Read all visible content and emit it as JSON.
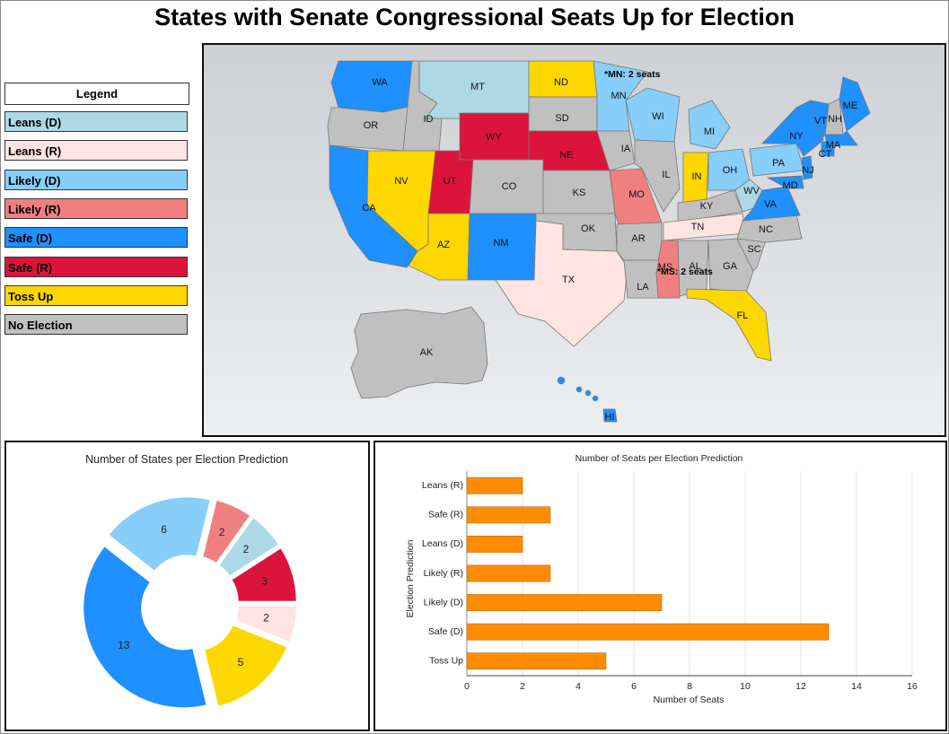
{
  "title": "States with Senate Congressional Seats Up for Election",
  "legend": {
    "title": "Legend",
    "items": [
      {
        "label": "Leans (D)",
        "color": "#add8e6"
      },
      {
        "label": "Leans (R)",
        "color": "#ffe4e1"
      },
      {
        "label": "Likely (D)",
        "color": "#87cefa"
      },
      {
        "label": "Likely (R)",
        "color": "#f08080"
      },
      {
        "label": "Safe (D)",
        "color": "#1e90ff"
      },
      {
        "label": "Safe (R)",
        "color": "#dc143c"
      },
      {
        "label": "Toss Up",
        "color": "#ffd700"
      },
      {
        "label": "No Election",
        "color": "#c0c0c0"
      }
    ]
  },
  "map": {
    "states": [
      {
        "abbr": "WA",
        "category": "Safe (D)"
      },
      {
        "abbr": "OR",
        "category": "No Election"
      },
      {
        "abbr": "CA",
        "category": "Safe (D)"
      },
      {
        "abbr": "ID",
        "category": "No Election"
      },
      {
        "abbr": "NV",
        "category": "Toss Up"
      },
      {
        "abbr": "MT",
        "category": "Leans (D)"
      },
      {
        "abbr": "WY",
        "category": "Safe (R)"
      },
      {
        "abbr": "UT",
        "category": "Safe (R)"
      },
      {
        "abbr": "AZ",
        "category": "Toss Up"
      },
      {
        "abbr": "CO",
        "category": "No Election"
      },
      {
        "abbr": "NM",
        "category": "Safe (D)"
      },
      {
        "abbr": "ND",
        "category": "Toss Up"
      },
      {
        "abbr": "SD",
        "category": "No Election"
      },
      {
        "abbr": "NE",
        "category": "Safe (R)"
      },
      {
        "abbr": "KS",
        "category": "No Election"
      },
      {
        "abbr": "OK",
        "category": "No Election"
      },
      {
        "abbr": "TX",
        "category": "Leans (R)"
      },
      {
        "abbr": "MN",
        "category": "Likely (D)"
      },
      {
        "abbr": "IA",
        "category": "No Election"
      },
      {
        "abbr": "MO",
        "category": "Likely (R)"
      },
      {
        "abbr": "AR",
        "category": "No Election"
      },
      {
        "abbr": "LA",
        "category": "No Election"
      },
      {
        "abbr": "WI",
        "category": "Likely (D)"
      },
      {
        "abbr": "IL",
        "category": "No Election"
      },
      {
        "abbr": "MS",
        "category": "Likely (R)"
      },
      {
        "abbr": "MI",
        "category": "Likely (D)"
      },
      {
        "abbr": "IN",
        "category": "Toss Up"
      },
      {
        "abbr": "KY",
        "category": "No Election"
      },
      {
        "abbr": "TN",
        "category": "Leans (R)"
      },
      {
        "abbr": "AL",
        "category": "No Election"
      },
      {
        "abbr": "OH",
        "category": "Likely (D)"
      },
      {
        "abbr": "WV",
        "category": "Leans (D)"
      },
      {
        "abbr": "GA",
        "category": "No Election"
      },
      {
        "abbr": "FL",
        "category": "Toss Up"
      },
      {
        "abbr": "SC",
        "category": "No Election"
      },
      {
        "abbr": "NC",
        "category": "No Election"
      },
      {
        "abbr": "VA",
        "category": "Safe (D)"
      },
      {
        "abbr": "PA",
        "category": "Likely (D)"
      },
      {
        "abbr": "NY",
        "category": "Safe (D)"
      },
      {
        "abbr": "VT",
        "category": "Safe (D)"
      },
      {
        "abbr": "NH",
        "category": "No Election"
      },
      {
        "abbr": "ME",
        "category": "Safe (D)"
      },
      {
        "abbr": "MA",
        "category": "Safe (D)"
      },
      {
        "abbr": "CT",
        "category": "Safe (D)"
      },
      {
        "abbr": "NJ",
        "category": "Safe (D)"
      },
      {
        "abbr": "MD",
        "category": "Safe (D)"
      },
      {
        "abbr": "AK",
        "category": "No Election"
      },
      {
        "abbr": "HI",
        "category": "Safe (D)"
      }
    ],
    "notes": [
      "*MN: 2 seats",
      "*MS: 2 seats"
    ]
  },
  "chart_data": [
    {
      "type": "pie",
      "title": "Number of States per Election Prediction",
      "slices": [
        {
          "label": "Leans (R)",
          "value": 2,
          "color": "#ffe4e1"
        },
        {
          "label": "Toss Up",
          "value": 5,
          "color": "#ffd700"
        },
        {
          "label": "Safe (D)",
          "value": 13,
          "color": "#1e90ff"
        },
        {
          "label": "Likely (D)",
          "value": 6,
          "color": "#87cefa"
        },
        {
          "label": "Likely (R)",
          "value": 2,
          "color": "#f08080"
        },
        {
          "label": "Leans (D)",
          "value": 2,
          "color": "#add8e6"
        },
        {
          "label": "Safe (R)",
          "value": 3,
          "color": "#dc143c"
        }
      ]
    },
    {
      "type": "bar",
      "orientation": "horizontal",
      "title": "Number of Seats per Election Prediction",
      "xlabel": "Number of Seats",
      "ylabel": "Election Prediction",
      "categories": [
        "Leans (R)",
        "Safe (R)",
        "Leans (D)",
        "Likely (R)",
        "Likely (D)",
        "Safe (D)",
        "Toss Up"
      ],
      "values": [
        2,
        3,
        2,
        3,
        7,
        13,
        5
      ],
      "xlim": [
        0,
        16
      ],
      "xticks": [
        0,
        2,
        4,
        6,
        8,
        10,
        12,
        14,
        16
      ],
      "color": "#ff8c00",
      "grid": true
    }
  ]
}
